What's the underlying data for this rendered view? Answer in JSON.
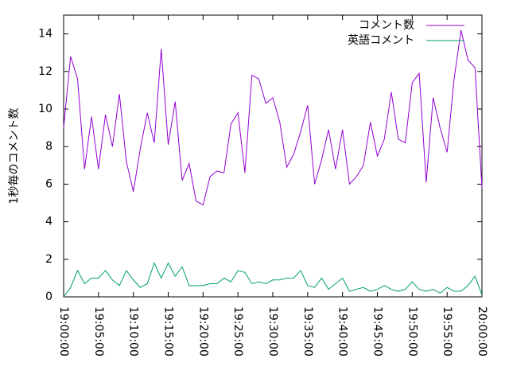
{
  "chart_data": {
    "type": "line",
    "ylabel": "1秒毎のコメント数",
    "x": [
      "19:00:00",
      "19:01:00",
      "19:02:00",
      "19:03:00",
      "19:04:00",
      "19:05:00",
      "19:06:00",
      "19:07:00",
      "19:08:00",
      "19:09:00",
      "19:10:00",
      "19:11:00",
      "19:12:00",
      "19:13:00",
      "19:14:00",
      "19:15:00",
      "19:16:00",
      "19:17:00",
      "19:18:00",
      "19:19:00",
      "19:20:00",
      "19:21:00",
      "19:22:00",
      "19:23:00",
      "19:24:00",
      "19:25:00",
      "19:26:00",
      "19:27:00",
      "19:28:00",
      "19:29:00",
      "19:30:00",
      "19:31:00",
      "19:32:00",
      "19:33:00",
      "19:34:00",
      "19:35:00",
      "19:36:00",
      "19:37:00",
      "19:38:00",
      "19:39:00",
      "19:40:00",
      "19:41:00",
      "19:42:00",
      "19:43:00",
      "19:44:00",
      "19:45:00",
      "19:46:00",
      "19:47:00",
      "19:48:00",
      "19:49:00",
      "19:50:00",
      "19:51:00",
      "19:52:00",
      "19:53:00",
      "19:54:00",
      "19:55:00",
      "19:56:00",
      "19:57:00",
      "19:58:00",
      "19:59:00",
      "20:00:00"
    ],
    "series": [
      {
        "name": "コメント数",
        "color": "#9400d3",
        "values": [
          9.0,
          12.8,
          11.6,
          6.8,
          9.6,
          6.8,
          9.7,
          8.0,
          10.8,
          7.2,
          5.6,
          7.9,
          9.8,
          8.2,
          13.2,
          8.1,
          10.4,
          6.2,
          7.1,
          5.1,
          4.9,
          6.4,
          6.7,
          6.6,
          9.2,
          9.8,
          6.6,
          11.8,
          11.6,
          10.3,
          10.6,
          9.3,
          6.9,
          7.6,
          8.8,
          10.2,
          6.0,
          7.3,
          8.9,
          6.8,
          8.9,
          6.0,
          6.4,
          7.0,
          9.3,
          7.5,
          8.4,
          10.9,
          8.4,
          8.2,
          11.4,
          11.9,
          6.1,
          10.6,
          9.0,
          7.7,
          11.6,
          14.2,
          12.6,
          12.2,
          5.8
        ]
      },
      {
        "name": "英語コメント",
        "color": "#009e73",
        "values": [
          0,
          0.5,
          1.4,
          0.7,
          1.0,
          1.0,
          1.4,
          0.9,
          0.6,
          1.4,
          0.9,
          0.5,
          0.7,
          1.8,
          1.0,
          1.8,
          1.1,
          1.6,
          0.6,
          0.6,
          0.6,
          0.7,
          0.7,
          1.0,
          0.8,
          1.4,
          1.3,
          0.7,
          0.8,
          0.7,
          0.9,
          0.9,
          1.0,
          1.0,
          1.4,
          0.6,
          0.5,
          1.0,
          0.4,
          0.7,
          1.0,
          0.3,
          0.4,
          0.5,
          0.3,
          0.4,
          0.6,
          0.4,
          0.3,
          0.4,
          0.8,
          0.4,
          0.3,
          0.4,
          0.2,
          0.5,
          0.3,
          0.3,
          0.6,
          1.1,
          0.1
        ]
      }
    ],
    "xlim": [
      "19:00:00",
      "20:00:00"
    ],
    "xticks": [
      "19:00:00",
      "19:05:00",
      "19:10:00",
      "19:15:00",
      "19:20:00",
      "19:25:00",
      "19:30:00",
      "19:35:00",
      "19:40:00",
      "19:45:00",
      "19:50:00",
      "19:55:00",
      "20:00:00"
    ],
    "ylim": [
      0,
      15
    ],
    "yticks": [
      0,
      2,
      4,
      6,
      8,
      10,
      12,
      14
    ],
    "legend": "top-right"
  }
}
